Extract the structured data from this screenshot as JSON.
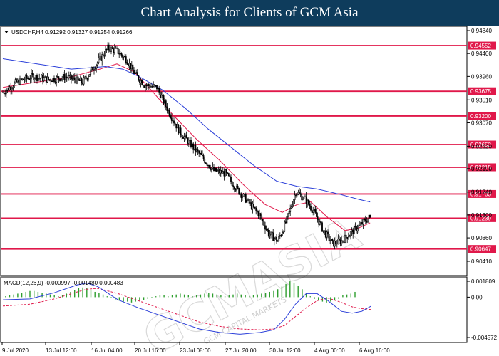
{
  "banner": {
    "title": "Chart Analysis for Clients of GCM Asia"
  },
  "colors": {
    "banner_bg": "#0e3c5c",
    "level_line": "#e0184a",
    "ma_fast": "#e0184a",
    "ma_slow": "#2b3fd9",
    "histogram": "#2e9e2e",
    "macd_signal": "#e0184a",
    "macd_line": "#2b3fd9",
    "candle": "#000000",
    "grid_bg": "#ffffff"
  },
  "chart_data": {
    "type": "candlestick",
    "title": "",
    "symbol_info": "USDCHF,H4  0.91292 0.91327 0.91254 0.91266",
    "ylim": [
      0.9041,
      0.9484
    ],
    "y_ticks": [
      0.9484,
      0.944,
      0.9396,
      0.9351,
      0.9307,
      0.9262,
      0.9219,
      0.9174,
      0.913,
      0.9086,
      0.9041
    ],
    "y_tick_labels": [
      "0.94840",
      "0.94400",
      "0.93960",
      "0.93510",
      "0.93070",
      "0.92620",
      "0.92190",
      "0.91740",
      "0.91300",
      "0.90860",
      "0.90410"
    ],
    "levels": [
      0.94552,
      0.93675,
      0.932,
      0.92652,
      0.92215,
      0.91703,
      0.91239,
      0.90647
    ],
    "level_labels": [
      "0.94552",
      "0.93675",
      "0.93200",
      "0.92652",
      "0.92215",
      "0.91703",
      "0.91239",
      "0.90647"
    ],
    "x_labels": [
      "9 Jul 2020",
      "13 Jul 12:00",
      "16 Jul 04:00",
      "20 Jul 16:00",
      "23 Jul 08:00",
      "27 Jul 20:00",
      "30 Jul 12:00",
      "4 Aug 00:00",
      "6 Aug 16:00"
    ],
    "price_path": [
      [
        0,
        0.9365
      ],
      [
        12,
        0.9385
      ],
      [
        26,
        0.9396
      ],
      [
        40,
        0.939
      ],
      [
        55,
        0.9395
      ],
      [
        70,
        0.9385
      ],
      [
        82,
        0.942
      ],
      [
        92,
        0.945
      ],
      [
        100,
        0.9445
      ],
      [
        108,
        0.943
      ],
      [
        116,
        0.94
      ],
      [
        124,
        0.938
      ],
      [
        135,
        0.9375
      ],
      [
        145,
        0.933
      ],
      [
        155,
        0.929
      ],
      [
        165,
        0.9265
      ],
      [
        175,
        0.924
      ],
      [
        185,
        0.9215
      ],
      [
        195,
        0.921
      ],
      [
        205,
        0.918
      ],
      [
        215,
        0.9155
      ],
      [
        225,
        0.913
      ],
      [
        233,
        0.9095
      ],
      [
        241,
        0.908
      ],
      [
        249,
        0.912
      ],
      [
        257,
        0.9175
      ],
      [
        265,
        0.916
      ],
      [
        273,
        0.9135
      ],
      [
        281,
        0.91
      ],
      [
        289,
        0.9075
      ],
      [
        297,
        0.908
      ],
      [
        305,
        0.9095
      ],
      [
        313,
        0.911
      ],
      [
        322,
        0.9127
      ]
    ],
    "series": [
      {
        "name": "",
        "type": "ma_fast",
        "points": [
          [
            0,
            0.9375
          ],
          [
            30,
            0.9385
          ],
          [
            60,
            0.9395
          ],
          [
            85,
            0.941
          ],
          [
            100,
            0.942
          ],
          [
            115,
            0.9405
          ],
          [
            130,
            0.937
          ],
          [
            150,
            0.932
          ],
          [
            170,
            0.9275
          ],
          [
            190,
            0.9235
          ],
          [
            210,
            0.919
          ],
          [
            230,
            0.915
          ],
          [
            245,
            0.9135
          ],
          [
            258,
            0.915
          ],
          [
            270,
            0.9155
          ],
          [
            285,
            0.9125
          ],
          [
            300,
            0.91
          ],
          [
            312,
            0.9105
          ],
          [
            322,
            0.9115
          ]
        ]
      },
      {
        "name": "",
        "type": "ma_slow",
        "points": [
          [
            0,
            0.943
          ],
          [
            30,
            0.942
          ],
          [
            60,
            0.941
          ],
          [
            90,
            0.9415
          ],
          [
            105,
            0.941
          ],
          [
            120,
            0.9395
          ],
          [
            140,
            0.937
          ],
          [
            160,
            0.9335
          ],
          [
            180,
            0.9295
          ],
          [
            200,
            0.926
          ],
          [
            220,
            0.9225
          ],
          [
            240,
            0.9195
          ],
          [
            258,
            0.9185
          ],
          [
            275,
            0.918
          ],
          [
            295,
            0.917
          ],
          [
            312,
            0.916
          ],
          [
            322,
            0.9155
          ]
        ]
      }
    ],
    "macd": {
      "label": "MACD(12,26,9) -0.000997 -0.001480 0.000483",
      "ylim": [
        -0.004572,
        0.001809
      ],
      "y_tick_labels": [
        "0.001809",
        "0.00",
        "-0.004572"
      ],
      "y_ticks": [
        0.001809,
        0.0,
        -0.004572
      ],
      "histogram": [
        [
          2,
          0.0001
        ],
        [
          5,
          0.0002
        ],
        [
          8,
          0.0003
        ],
        [
          11,
          0.0004
        ],
        [
          14,
          0.0005
        ],
        [
          17,
          0.0006
        ],
        [
          20,
          0.0007
        ],
        [
          23,
          0.0007
        ],
        [
          26,
          0.0006
        ],
        [
          29,
          0.0005
        ],
        [
          32,
          0.0004
        ],
        [
          35,
          0.0003
        ],
        [
          38,
          0.0002
        ],
        [
          41,
          0.0001
        ],
        [
          44,
          0.0002
        ],
        [
          47,
          0.0004
        ],
        [
          50,
          0.0006
        ],
        [
          53,
          0.0008
        ],
        [
          56,
          0.001
        ],
        [
          59,
          0.0011
        ],
        [
          62,
          0.001
        ],
        [
          65,
          0.0008
        ],
        [
          68,
          0.0006
        ],
        [
          71,
          0.0005
        ],
        [
          74,
          0.0003
        ],
        [
          77,
          0.0001
        ],
        [
          80,
          -0.0001
        ],
        [
          83,
          -0.0003
        ],
        [
          86,
          -0.0004
        ],
        [
          89,
          -0.0005
        ],
        [
          92,
          -0.0005
        ],
        [
          95,
          -0.0006
        ],
        [
          98,
          -0.0005
        ],
        [
          101,
          -0.0004
        ],
        [
          104,
          -0.0003
        ],
        [
          107,
          -0.0002
        ],
        [
          110,
          -0.0001
        ],
        [
          113,
          0.0001
        ],
        [
          116,
          0.0002
        ],
        [
          119,
          0.0002
        ],
        [
          122,
          0.0001
        ],
        [
          125,
          0.0002
        ],
        [
          128,
          0.0003
        ],
        [
          131,
          0.0004
        ],
        [
          134,
          0.0003
        ],
        [
          137,
          0.0002
        ],
        [
          140,
          0.0001
        ],
        [
          143,
          0.0002
        ],
        [
          146,
          0.0003
        ],
        [
          149,
          0.0004
        ],
        [
          152,
          0.0005
        ],
        [
          155,
          0.0004
        ],
        [
          158,
          0.0003
        ],
        [
          161,
          0.0002
        ],
        [
          164,
          0.0001
        ],
        [
          167,
          0.0002
        ],
        [
          170,
          0.0003
        ],
        [
          173,
          0.0004
        ],
        [
          176,
          0.0003
        ],
        [
          179,
          0.0002
        ],
        [
          182,
          0.0001
        ],
        [
          185,
          0.0002
        ],
        [
          188,
          0.0003
        ],
        [
          191,
          0.0004
        ],
        [
          194,
          0.0005
        ],
        [
          197,
          0.0006
        ],
        [
          200,
          0.0007
        ],
        [
          203,
          0.0009
        ],
        [
          206,
          0.0012
        ],
        [
          209,
          0.0015
        ],
        [
          212,
          0.0018
        ],
        [
          215,
          0.0016
        ],
        [
          218,
          0.0013
        ],
        [
          221,
          0.0009
        ],
        [
          224,
          0.0005
        ],
        [
          227,
          0.0001
        ],
        [
          230,
          -0.0002
        ],
        [
          233,
          -0.0004
        ],
        [
          236,
          -0.0005
        ],
        [
          239,
          -0.0006
        ],
        [
          242,
          -0.0005
        ],
        [
          245,
          -0.0003
        ],
        [
          248,
          -0.0002
        ],
        [
          251,
          0.0002
        ],
        [
          254,
          0.0003
        ],
        [
          257,
          0.0004
        ],
        [
          260,
          0.0006
        ]
      ],
      "macd_line": [
        [
          0,
          -0.0003
        ],
        [
          20,
          -0.0002
        ],
        [
          38,
          0.0005
        ],
        [
          55,
          0.0014
        ],
        [
          62,
          0.0016
        ],
        [
          70,
          0.0012
        ],
        [
          85,
          -0.0003
        ],
        [
          100,
          -0.0012
        ],
        [
          115,
          -0.002
        ],
        [
          130,
          -0.0028
        ],
        [
          145,
          -0.0036
        ],
        [
          160,
          -0.004
        ],
        [
          175,
          -0.0042
        ],
        [
          190,
          -0.004
        ],
        [
          200,
          -0.0037
        ],
        [
          208,
          -0.0025
        ],
        [
          216,
          -0.0008
        ],
        [
          224,
          0.0004
        ],
        [
          232,
          0.0004
        ],
        [
          240,
          -0.0004
        ],
        [
          250,
          -0.0016
        ],
        [
          258,
          -0.0018
        ],
        [
          265,
          -0.0016
        ],
        [
          272,
          -0.001
        ]
      ],
      "signal_line": [
        [
          0,
          -0.001
        ],
        [
          20,
          -0.0008
        ],
        [
          38,
          -0.0002
        ],
        [
          55,
          0.0006
        ],
        [
          62,
          0.0009
        ],
        [
          70,
          0.001
        ],
        [
          85,
          0.0004
        ],
        [
          100,
          -0.0004
        ],
        [
          115,
          -0.0012
        ],
        [
          130,
          -0.002
        ],
        [
          145,
          -0.0028
        ],
        [
          160,
          -0.0033
        ],
        [
          175,
          -0.0036
        ],
        [
          190,
          -0.0037
        ],
        [
          200,
          -0.0036
        ],
        [
          208,
          -0.0032
        ],
        [
          216,
          -0.0022
        ],
        [
          224,
          -0.0012
        ],
        [
          232,
          -0.0004
        ],
        [
          240,
          -0.0001
        ],
        [
          250,
          -0.0006
        ],
        [
          258,
          -0.0011
        ],
        [
          265,
          -0.0013
        ],
        [
          272,
          -0.0014
        ]
      ]
    }
  },
  "watermark": {
    "brand": "GCMASIA",
    "sub": "GCM CAPITAL MARKETS"
  }
}
